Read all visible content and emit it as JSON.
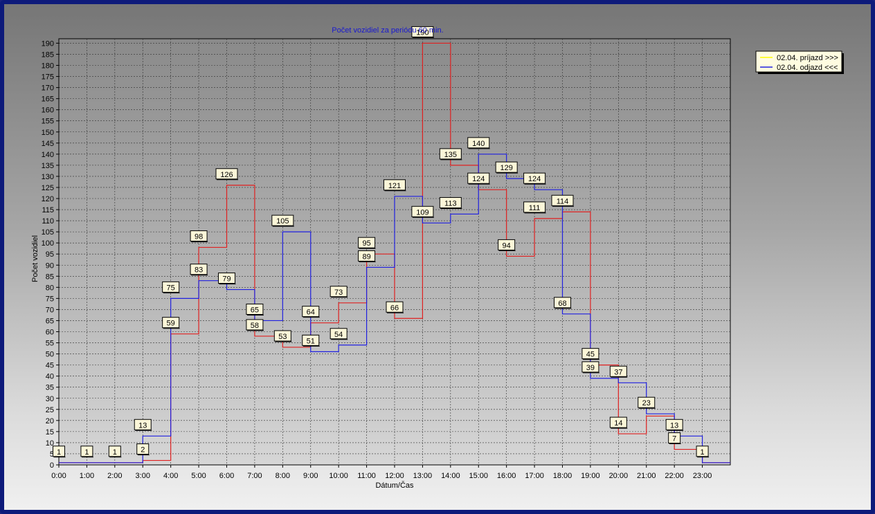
{
  "chart_data": {
    "type": "line",
    "step": true,
    "title": "Počet vozidiel za periódu 60 min.",
    "xlabel": "Dátum/Čas",
    "ylabel": "Počet vozidiel",
    "ylim": [
      0,
      192
    ],
    "y_ticks": [
      0,
      5,
      10,
      15,
      20,
      25,
      30,
      35,
      40,
      45,
      50,
      55,
      60,
      65,
      70,
      75,
      80,
      85,
      90,
      95,
      100,
      105,
      110,
      115,
      120,
      125,
      130,
      135,
      140,
      145,
      150,
      155,
      160,
      165,
      170,
      175,
      180,
      185,
      190
    ],
    "categories": [
      "0:00",
      "1:00",
      "2:00",
      "3:00",
      "4:00",
      "5:00",
      "6:00",
      "7:00",
      "8:00",
      "9:00",
      "10:00",
      "11:00",
      "12:00",
      "13:00",
      "14:00",
      "15:00",
      "16:00",
      "17:00",
      "18:00",
      "19:00",
      "20:00",
      "21:00",
      "22:00",
      "23:00"
    ],
    "grid": true,
    "legend_position": "top-right",
    "series": [
      {
        "name": "02.04. príjazd >>>",
        "color": "#e02020",
        "values": [
          1,
          1,
          1,
          2,
          59,
          98,
          126,
          58,
          53,
          64,
          73,
          95,
          66,
          190,
          135,
          124,
          94,
          111,
          114,
          45,
          14,
          22,
          7,
          1
        ]
      },
      {
        "name": "02.04. odjazd <<<",
        "color": "#2020e0",
        "values": [
          1,
          1,
          1,
          13,
          75,
          83,
          79,
          65,
          105,
          51,
          54,
          89,
          121,
          109,
          113,
          140,
          129,
          124,
          68,
          39,
          37,
          23,
          13,
          1
        ]
      }
    ],
    "data_labels": [
      {
        "series": 1,
        "index": 0,
        "text": "1"
      },
      {
        "series": 1,
        "index": 1,
        "text": "1"
      },
      {
        "series": 1,
        "index": 2,
        "text": "1"
      },
      {
        "series": 0,
        "index": 3,
        "text": "2"
      },
      {
        "series": 1,
        "index": 3,
        "text": "13"
      },
      {
        "series": 0,
        "index": 4,
        "text": "59"
      },
      {
        "series": 1,
        "index": 4,
        "text": "75"
      },
      {
        "series": 0,
        "index": 5,
        "text": "98"
      },
      {
        "series": 1,
        "index": 5,
        "text": "83"
      },
      {
        "series": 0,
        "index": 6,
        "text": "126"
      },
      {
        "series": 1,
        "index": 6,
        "text": "79"
      },
      {
        "series": 0,
        "index": 7,
        "text": "58"
      },
      {
        "series": 1,
        "index": 7,
        "text": "65"
      },
      {
        "series": 0,
        "index": 8,
        "text": "53"
      },
      {
        "series": 1,
        "index": 8,
        "text": "105"
      },
      {
        "series": 0,
        "index": 9,
        "text": "64"
      },
      {
        "series": 1,
        "index": 9,
        "text": "51"
      },
      {
        "series": 0,
        "index": 10,
        "text": "73"
      },
      {
        "series": 1,
        "index": 10,
        "text": "54"
      },
      {
        "series": 0,
        "index": 11,
        "text": "95"
      },
      {
        "series": 1,
        "index": 11,
        "text": "89"
      },
      {
        "series": 0,
        "index": 12,
        "text": "66"
      },
      {
        "series": 1,
        "index": 12,
        "text": "121"
      },
      {
        "series": 0,
        "index": 13,
        "text": "190"
      },
      {
        "series": 1,
        "index": 13,
        "text": "109"
      },
      {
        "series": 0,
        "index": 14,
        "text": "135"
      },
      {
        "series": 1,
        "index": 14,
        "text": "113"
      },
      {
        "series": 0,
        "index": 15,
        "text": "124"
      },
      {
        "series": 1,
        "index": 15,
        "text": "140"
      },
      {
        "series": 0,
        "index": 16,
        "text": "94"
      },
      {
        "series": 1,
        "index": 16,
        "text": "129"
      },
      {
        "series": 0,
        "index": 17,
        "text": "111"
      },
      {
        "series": 1,
        "index": 17,
        "text": "124"
      },
      {
        "series": 0,
        "index": 18,
        "text": "114"
      },
      {
        "series": 1,
        "index": 18,
        "text": "68"
      },
      {
        "series": 0,
        "index": 19,
        "text": "45"
      },
      {
        "series": 1,
        "index": 19,
        "text": "39"
      },
      {
        "series": 0,
        "index": 20,
        "text": "14"
      },
      {
        "series": 1,
        "index": 20,
        "text": "37"
      },
      {
        "series": 1,
        "index": 21,
        "text": "23"
      },
      {
        "series": 0,
        "index": 22,
        "text": "7"
      },
      {
        "series": 1,
        "index": 22,
        "text": "13"
      },
      {
        "series": 0,
        "index": 23,
        "text": "1"
      }
    ]
  },
  "legend": {
    "items": [
      {
        "label": "02.04.  príjazd >>>",
        "color": "#ffff00"
      },
      {
        "label": "02.04.  odjazd <<<",
        "color": "#2020e0"
      }
    ]
  }
}
